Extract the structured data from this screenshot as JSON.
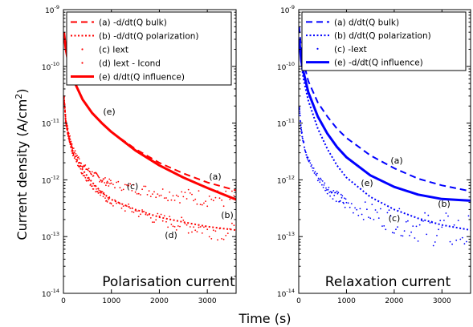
{
  "chart_data": [
    {
      "type": "line",
      "title": "",
      "panel_caption": "Polarisation current",
      "xlabel": "Time (s)",
      "ylabel": "Current density (A/cm2)",
      "xlim": [
        0,
        3600
      ],
      "ylim": [
        1e-14,
        1e-09
      ],
      "yscale": "log",
      "x_ticks": [
        "0",
        "1000",
        "2000",
        "3000"
      ],
      "y_ticks": [
        {
          "base": "10",
          "exp": "-14"
        },
        {
          "base": "10",
          "exp": "-13"
        },
        {
          "base": "10",
          "exp": "-12"
        },
        {
          "base": "10",
          "exp": "-11"
        },
        {
          "base": "10",
          "exp": "-10"
        },
        {
          "base": "10",
          "exp": "-9"
        }
      ],
      "color": "#ff0000",
      "legend_position": "top-right",
      "series": [
        {
          "name": "(a) -d/dt(Q bulk)",
          "label": "(a)",
          "style": "dashed",
          "x": [
            10,
            50,
            100,
            200,
            400,
            600,
            800,
            1000,
            1500,
            2000,
            2500,
            3000,
            3600
          ],
          "y": [
            4e-10,
            2e-10,
            1.2e-10,
            6e-11,
            2.6e-11,
            1.5e-11,
            1e-11,
            7e-12,
            3.5e-12,
            2e-12,
            1.3e-12,
            9e-13,
            6.5e-13
          ]
        },
        {
          "name": "(b) -d/dt(Q polarization)",
          "label": "(b)",
          "style": "dotted",
          "x": [
            10,
            50,
            100,
            200,
            400,
            600,
            800,
            1000,
            1500,
            2000,
            2500,
            3000,
            3600
          ],
          "y": [
            3e-11,
            1e-11,
            6e-12,
            3e-12,
            1.5e-12,
            9e-13,
            6e-13,
            4.5e-13,
            3e-13,
            2.2e-13,
            1.8e-13,
            1.5e-13,
            1.3e-13
          ]
        },
        {
          "name": "(c) Iext",
          "label": "(c)",
          "style": "points",
          "x": [
            10,
            50,
            100,
            200,
            400,
            600,
            800,
            1000,
            1500,
            2000,
            2500,
            3000,
            3600
          ],
          "y": [
            3e-11,
            1.1e-11,
            7e-12,
            3.5e-12,
            1.8e-12,
            1.3e-12,
            1e-12,
            8.5e-13,
            7e-13,
            6e-13,
            5.2e-13,
            4.8e-13,
            4.5e-13
          ]
        },
        {
          "name": "(d) Iext - Icond",
          "label": "(d)",
          "style": "points",
          "x": [
            10,
            50,
            100,
            200,
            400,
            600,
            800,
            1000,
            1500,
            2000,
            2500,
            3000,
            3600
          ],
          "y": [
            3e-11,
            1e-11,
            6e-12,
            2.8e-12,
            1.3e-12,
            8e-13,
            5.5e-13,
            4e-13,
            2.8e-13,
            2e-13,
            1.6e-13,
            1.35e-13,
            1.15e-13
          ]
        },
        {
          "name": "(e) d/dt(Q influence)",
          "label": "(e)",
          "style": "thick",
          "x": [
            10,
            50,
            100,
            200,
            400,
            600,
            800,
            1000,
            1500,
            2000,
            2500,
            3000,
            3600
          ],
          "y": [
            4e-10,
            2e-10,
            1.2e-10,
            6e-11,
            2.6e-11,
            1.5e-11,
            1e-11,
            7e-12,
            3.3e-12,
            1.8e-12,
            1.1e-12,
            7.2e-13,
            4.5e-13
          ]
        }
      ]
    },
    {
      "type": "line",
      "title": "",
      "panel_caption": "Relaxation current",
      "xlabel": "Time (s)",
      "ylabel": "",
      "xlim": [
        0,
        3600
      ],
      "ylim": [
        1e-14,
        1e-09
      ],
      "yscale": "log",
      "x_ticks": [
        "0",
        "1000",
        "2000",
        "3000"
      ],
      "y_ticks": [
        {
          "base": "10",
          "exp": "-14"
        },
        {
          "base": "10",
          "exp": "-13"
        },
        {
          "base": "10",
          "exp": "-12"
        },
        {
          "base": "10",
          "exp": "-11"
        },
        {
          "base": "10",
          "exp": "-10"
        },
        {
          "base": "10",
          "exp": "-9"
        }
      ],
      "color": "#0000ff",
      "legend_position": "top-right",
      "series": [
        {
          "name": "(a) d/dt(Q bulk)",
          "label": "(a)",
          "style": "dashed",
          "x": [
            10,
            50,
            100,
            200,
            400,
            600,
            800,
            1000,
            1500,
            2000,
            2500,
            3000,
            3600
          ],
          "y": [
            5e-10,
            2e-10,
            1.2e-10,
            5.5e-11,
            2.3e-11,
            1.3e-11,
            8e-12,
            5.5e-12,
            2.7e-12,
            1.6e-12,
            1.05e-12,
            8e-13,
            6.3e-13
          ]
        },
        {
          "name": "(b) d/dt(Q polarization)",
          "label": "(b)",
          "style": "dotted",
          "x": [
            10,
            50,
            100,
            200,
            400,
            600,
            800,
            1000,
            1500,
            2000,
            2500,
            3000,
            3600
          ],
          "y": [
            3e-10,
            1.2e-10,
            6e-11,
            2.5e-11,
            8e-12,
            3.5e-12,
            1.8e-12,
            1.1e-12,
            5e-13,
            3e-13,
            2.1e-13,
            1.6e-13,
            1.3e-13
          ]
        },
        {
          "name": "(c) -Iext",
          "label": "(c)",
          "style": "points",
          "x": [
            10,
            50,
            100,
            200,
            400,
            600,
            800,
            1000,
            1500,
            2000,
            2500,
            3000,
            3600
          ],
          "y": [
            2e-11,
            8e-12,
            4.5e-12,
            2.2e-12,
            1.1e-12,
            7e-13,
            5e-13,
            3.8e-13,
            2.6e-13,
            1.9e-13,
            1.5e-13,
            1.3e-13,
            1.1e-13
          ]
        },
        {
          "name": "(e) -d/dt(Q influence)",
          "label": "(e)",
          "style": "thick",
          "x": [
            10,
            50,
            100,
            200,
            400,
            600,
            800,
            1000,
            1500,
            2000,
            2500,
            3000,
            3600
          ],
          "y": [
            3e-10,
            1.3e-10,
            8e-11,
            3.5e-11,
            1.3e-11,
            6.5e-12,
            3.8e-12,
            2.5e-12,
            1.2e-12,
            7.5e-13,
            5.5e-13,
            4.6e-13,
            4.3e-13
          ]
        }
      ]
    }
  ]
}
